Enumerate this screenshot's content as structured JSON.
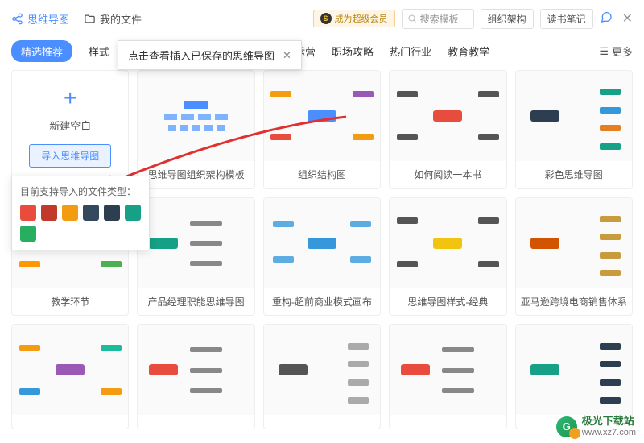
{
  "header": {
    "mindmap_link": "思维导图",
    "myfiles_link": "我的文件",
    "vip_label": "成为超级会员",
    "search_placeholder": "搜索模板",
    "tags": [
      "组织架构",
      "读书笔记"
    ]
  },
  "tabs": {
    "items": [
      "精选推荐",
      "样式",
      "运营",
      "职场攻略",
      "热门行业",
      "教育教学"
    ],
    "more": "更多"
  },
  "tooltip": {
    "text": "点击查看插入已保存的思维导图"
  },
  "new_card": {
    "label": "新建空白",
    "import_btn": "导入思维导图"
  },
  "import_popup": {
    "title": "目前支持导入的文件类型：",
    "types": [
      {
        "name": "xmind",
        "color": "#e84c3d"
      },
      {
        "name": "mm",
        "color": "#c0392b"
      },
      {
        "name": "butterfly",
        "color": "#f39c12"
      },
      {
        "name": "km",
        "color": "#34495e"
      },
      {
        "name": "txt",
        "color": "#2c3e50"
      },
      {
        "name": "pos",
        "color": "#16a085"
      },
      {
        "name": "s",
        "color": "#27ae60"
      }
    ]
  },
  "templates": [
    {
      "title": "思维导图组织架构模板",
      "style": "org",
      "colors": {
        "c1": "#4a8eff"
      }
    },
    {
      "title": "组织结构图",
      "style": "mind-h",
      "colors": {
        "center": "#4a8eff",
        "b1": "#f39c12",
        "b2": "#e74c3c",
        "b3": "#9b59b6"
      }
    },
    {
      "title": "如何阅读一本书",
      "style": "mind-h",
      "colors": {
        "center": "#e74c3c",
        "b1": "#555",
        "b2": "#555",
        "b3": "#555"
      }
    },
    {
      "title": "彩色思维导图",
      "style": "mind-list",
      "colors": {
        "center": "#2c3e50",
        "b1": "#16a085",
        "b2": "#3498db",
        "b3": "#e67e22"
      }
    },
    {
      "title": "教学环节",
      "style": "mind-h",
      "colors": {
        "center": "#e91e63",
        "b1": "#4caf50",
        "b2": "#ff9800",
        "b3": "#2196f3"
      }
    },
    {
      "title": "产品经理职能思维导图",
      "style": "mind-tree",
      "colors": {
        "center": "#16a085",
        "b1": "#888",
        "b2": "#888",
        "b3": "#888"
      }
    },
    {
      "title": "重构-超前商业模式画布",
      "style": "mind-net",
      "colors": {
        "center": "#3498db",
        "b1": "#5dade2",
        "b2": "#5dade2",
        "b3": "#5dade2"
      }
    },
    {
      "title": "思维导图样式-经典",
      "style": "mind-h",
      "colors": {
        "center": "#f1c40f",
        "b1": "#555",
        "b2": "#555",
        "b3": "#555"
      }
    },
    {
      "title": "亚马逊跨境电商销售体系",
      "style": "mind-list",
      "colors": {
        "center": "#d35400",
        "b1": "#c89b3c",
        "b2": "#c89b3c",
        "b3": "#c89b3c"
      }
    },
    {
      "title": "",
      "style": "mind-h",
      "colors": {
        "center": "#9b59b6",
        "b1": "#f39c12",
        "b2": "#3498db",
        "b3": "#1abc9c"
      }
    },
    {
      "title": "",
      "style": "mind-tree",
      "colors": {
        "center": "#e74c3c",
        "b1": "#888",
        "b2": "#888",
        "b3": "#888"
      }
    },
    {
      "title": "",
      "style": "mind-list",
      "colors": {
        "center": "#555",
        "b1": "#aaa",
        "b2": "#aaa",
        "b3": "#aaa"
      }
    },
    {
      "title": "",
      "style": "mind-tree",
      "colors": {
        "center": "#e74c3c",
        "b1": "#888",
        "b2": "#888",
        "b3": "#888"
      }
    },
    {
      "title": "",
      "style": "mind-list",
      "colors": {
        "center": "#16a085",
        "b1": "#2c3e50",
        "b2": "#2c3e50",
        "b3": "#2c3e50"
      }
    }
  ],
  "watermark": {
    "name": "极光下载站",
    "url": "www.xz7.com"
  }
}
